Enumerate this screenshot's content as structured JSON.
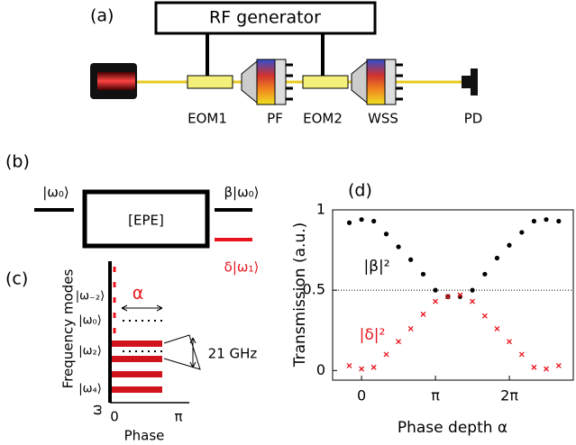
{
  "panel_a": {
    "label": "(a)",
    "generator": "RF generator",
    "components": [
      "EOM1",
      "PF",
      "EOM2",
      "WSS",
      "PD"
    ]
  },
  "panel_b": {
    "label": "(b)",
    "input": "|ω₀⟩",
    "box": "[EPE]",
    "output_0": "β|ω₀⟩",
    "output_1": "δ|ω₁⟩"
  },
  "panel_c": {
    "label": "(c)",
    "y_label": "Frequency modes",
    "modes": [
      "|ω₋₂⟩",
      "|ω₀⟩",
      "|ω₂⟩",
      "|ω₄⟩"
    ],
    "omega": "ω",
    "alpha": "α",
    "spacing": "21 GHz",
    "xticks": [
      "0",
      "π"
    ],
    "x_label": "Phase"
  },
  "chart_data": {
    "type": "scatter",
    "label": "(d)",
    "x_label": "Phase depth α",
    "y_label": "Transmission (a.u.)",
    "x": [
      -0.52,
      0,
      0.52,
      1.05,
      1.57,
      2.09,
      2.62,
      3.14,
      3.67,
      4.19,
      4.71,
      5.24,
      5.76,
      6.28,
      6.81,
      7.33,
      7.85,
      8.38
    ],
    "series": [
      {
        "name": "|β|²",
        "color": "#000000",
        "marker": "dot",
        "values": [
          0.92,
          0.94,
          0.93,
          0.85,
          0.77,
          0.69,
          0.6,
          0.5,
          0.46,
          0.46,
          0.5,
          0.6,
          0.7,
          0.78,
          0.86,
          0.93,
          0.94,
          0.93
        ]
      },
      {
        "name": "|δ|²",
        "color": "#e8141c",
        "marker": "cross",
        "values": [
          0.03,
          0.01,
          0.02,
          0.1,
          0.18,
          0.26,
          0.35,
          0.43,
          0.46,
          0.47,
          0.43,
          0.34,
          0.26,
          0.18,
          0.1,
          0.02,
          0.01,
          0.03
        ]
      }
    ],
    "xlim": [
      -1.23,
      9.0
    ],
    "ylim": [
      -0.06,
      1.0
    ],
    "xticks": [
      0,
      {
        "value": 3.14159,
        "label": "π"
      },
      {
        "value": 6.28319,
        "label": "2π"
      }
    ],
    "yticks": [
      0,
      0.5,
      1
    ],
    "hline": 0.5
  }
}
